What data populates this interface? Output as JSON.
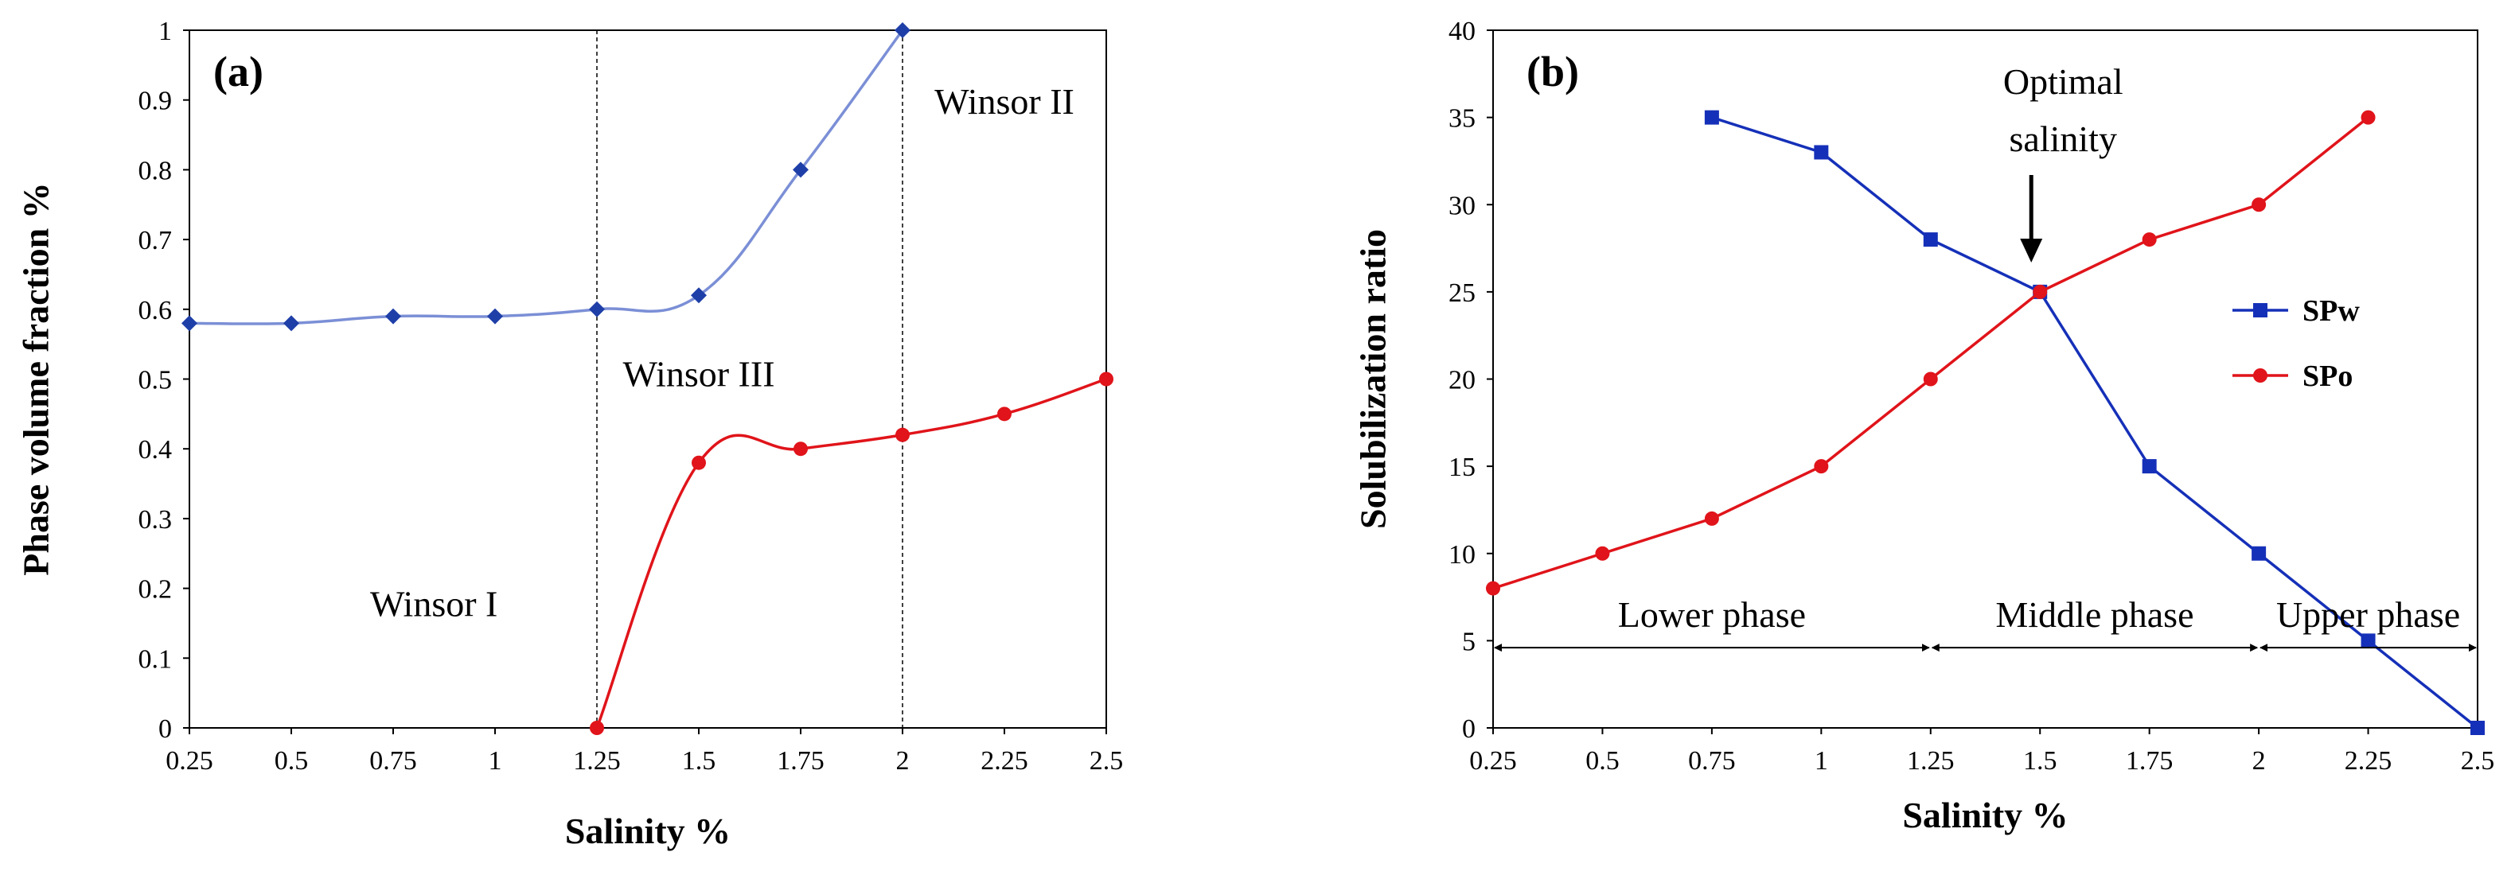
{
  "chart_data": [
    {
      "type": "line",
      "panel_label": "(a)",
      "xlabel": "Salinity %",
      "ylabel": "Phase volume fraction %",
      "x_ticks": [
        "0.25",
        "0.5",
        "0.75",
        "1",
        "1.25",
        "1.5",
        "1.75",
        "2",
        "2.25",
        "2.5"
      ],
      "y_ticks": [
        "0",
        "0.1",
        "0.2",
        "0.3",
        "0.4",
        "0.5",
        "0.6",
        "0.7",
        "0.8",
        "0.9",
        "1"
      ],
      "xlim": [
        0.25,
        2.5
      ],
      "ylim": [
        0,
        1
      ],
      "grid": false,
      "series": [
        {
          "marker": "diamond",
          "color": "#7b8fd6",
          "marker_color": "#1f3fa8",
          "smooth": true,
          "points": [
            [
              0.25,
              0.58
            ],
            [
              0.5,
              0.58
            ],
            [
              0.75,
              0.59
            ],
            [
              1.0,
              0.59
            ],
            [
              1.25,
              0.6
            ],
            [
              1.5,
              0.62
            ],
            [
              1.75,
              0.8
            ],
            [
              2.0,
              1.0
            ]
          ]
        },
        {
          "marker": "circle",
          "color": "#e0141a",
          "marker_color": "#e0141a",
          "smooth": true,
          "points": [
            [
              1.25,
              0.0
            ],
            [
              1.5,
              0.38
            ],
            [
              1.75,
              0.4
            ],
            [
              2.0,
              0.42
            ],
            [
              2.25,
              0.45
            ],
            [
              2.5,
              0.5
            ]
          ]
        }
      ],
      "vlines": [
        1.25,
        2.0
      ],
      "annotations": [
        {
          "text": "Winsor I",
          "x": 0.85,
          "y": 0.16
        },
        {
          "text": "Winsor III",
          "x": 1.5,
          "y": 0.49
        },
        {
          "text": "Winsor II",
          "x": 2.25,
          "y": 0.88
        }
      ]
    },
    {
      "type": "line",
      "panel_label": "(b)",
      "xlabel": "Salinity %",
      "ylabel": "Solubilization ratio",
      "x_ticks": [
        "0.25",
        "0.5",
        "0.75",
        "1",
        "1.25",
        "1.5",
        "1.75",
        "2",
        "2.25",
        "2.5"
      ],
      "y_ticks": [
        "0",
        "5",
        "10",
        "15",
        "20",
        "25",
        "30",
        "35",
        "40"
      ],
      "xlim": [
        0.25,
        2.5
      ],
      "ylim": [
        0,
        40
      ],
      "grid": false,
      "legend_position": "right",
      "series": [
        {
          "name": "SPw",
          "marker": "square",
          "color": "#1530b8",
          "marker_color": "#1530b8",
          "smooth": false,
          "points": [
            [
              0.75,
              35
            ],
            [
              1.0,
              33
            ],
            [
              1.25,
              28
            ],
            [
              1.5,
              25
            ],
            [
              1.75,
              15
            ],
            [
              2.0,
              10
            ],
            [
              2.25,
              5
            ],
            [
              2.5,
              0
            ]
          ]
        },
        {
          "name": "SPo",
          "marker": "circle",
          "color": "#e0141a",
          "marker_color": "#e0141a",
          "smooth": false,
          "points": [
            [
              0.25,
              8
            ],
            [
              0.5,
              10
            ],
            [
              0.75,
              12
            ],
            [
              1.0,
              15
            ],
            [
              1.25,
              20
            ],
            [
              1.5,
              25
            ],
            [
              1.75,
              28
            ],
            [
              2.0,
              30
            ],
            [
              2.25,
              35
            ]
          ]
        }
      ],
      "optimal_label_line1": "Optimal",
      "optimal_label_line2": "salinity",
      "optimal_x": 1.48,
      "phase_labels": [
        {
          "text": "Lower phase",
          "x_from": 0.25,
          "x_to": 1.25
        },
        {
          "text": "Middle phase",
          "x_from": 1.25,
          "x_to": 2.0
        },
        {
          "text": "Upper phase",
          "x_from": 2.0,
          "x_to": 2.5
        }
      ],
      "phase_arrow_y": 4.6
    }
  ]
}
